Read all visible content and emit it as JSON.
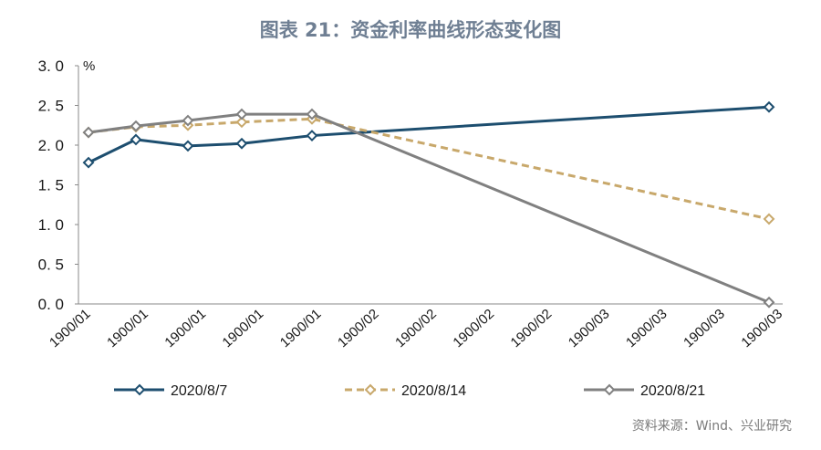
{
  "chart_data": {
    "type": "line",
    "title": "图表 21：资金利率曲线形态变化图",
    "ylabel": "",
    "y_unit": "%",
    "xlabel": "",
    "ylim": [
      0,
      3.0
    ],
    "yticks": [
      "3. 0",
      "2. 5",
      "2. 0",
      "1. 5",
      "1. 0",
      "0. 5",
      "0. 0"
    ],
    "xticks": [
      "1900/01",
      "1900/01",
      "1900/01",
      "1900/01",
      "1900/01",
      "1900/02",
      "1900/02",
      "1900/02",
      "1900/02",
      "1900/03",
      "1900/03",
      "1900/03",
      "1900/03"
    ],
    "x": [
      1,
      7,
      14,
      21,
      30,
      365
    ],
    "series": [
      {
        "name": "2020/8/7",
        "values": [
          1.78,
          2.07,
          1.99,
          2.02,
          2.12,
          2.48
        ],
        "color": "#1d4e6f",
        "dash": "solid"
      },
      {
        "name": "2020/8/14",
        "values": [
          2.16,
          2.23,
          2.25,
          2.29,
          2.33,
          1.07
        ],
        "color": "#c8a86b",
        "dash": "dashed"
      },
      {
        "name": "2020/8/21",
        "values": [
          2.16,
          2.24,
          2.31,
          2.39,
          2.39,
          0.02
        ],
        "color": "#808080",
        "dash": "solid"
      }
    ],
    "grid": false,
    "legend_position": "bottom",
    "source": "资料来源：Wind、兴业研究"
  }
}
